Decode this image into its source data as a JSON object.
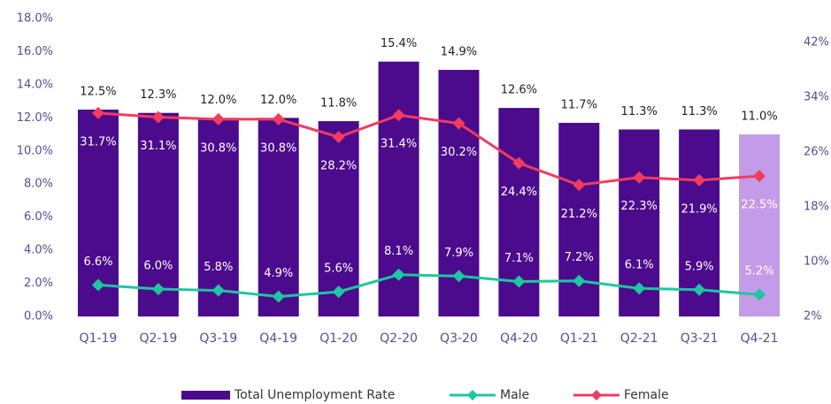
{
  "chart_data": {
    "type": "bar-line",
    "categories": [
      "Q1-19",
      "Q2-19",
      "Q3-19",
      "Q4-19",
      "Q1-20",
      "Q2-20",
      "Q3-20",
      "Q4-20",
      "Q1-21",
      "Q2-21",
      "Q3-21",
      "Q4-21"
    ],
    "series": [
      {
        "name": "Total Unemployment Rate",
        "type": "bar",
        "color": "#4b0b8c",
        "colors": [
          "#4b0b8c",
          "#4b0b8c",
          "#4b0b8c",
          "#4b0b8c",
          "#4b0b8c",
          "#4b0b8c",
          "#4b0b8c",
          "#4b0b8c",
          "#4b0b8c",
          "#4b0b8c",
          "#4b0b8c",
          "#c39be8"
        ],
        "values": [
          12.5,
          12.3,
          12.0,
          12.0,
          11.8,
          15.4,
          14.9,
          12.6,
          11.7,
          11.3,
          11.3,
          11.0
        ],
        "value_labels": [
          "12.5%",
          "12.3%",
          "12.0%",
          "12.0%",
          "11.8%",
          "15.4%",
          "14.9%",
          "12.6%",
          "11.7%",
          "11.3%",
          "11.3%",
          "11.0%"
        ]
      },
      {
        "name": "Male",
        "type": "line",
        "axis": "y2",
        "color": "#1dc7a0",
        "values": [
          6.6,
          6.0,
          5.8,
          4.9,
          5.6,
          8.1,
          7.9,
          7.1,
          7.2,
          6.1,
          5.9,
          5.2
        ],
        "value_labels": [
          "6.6%",
          "6.0%",
          "5.8%",
          "4.9%",
          "5.6%",
          "8.1%",
          "7.9%",
          "7.1%",
          "7.2%",
          "6.1%",
          "5.9%",
          "5.2%"
        ]
      },
      {
        "name": "Female",
        "type": "line",
        "axis": "y2",
        "color": "#f23b5f",
        "values": [
          31.7,
          31.1,
          30.8,
          30.8,
          28.2,
          31.4,
          30.2,
          24.4,
          21.2,
          22.3,
          21.9,
          22.5
        ],
        "value_labels": [
          "31.7%",
          "31.1%",
          "30.8%",
          "30.8%",
          "28.2%",
          "31.4%",
          "30.2%",
          "24.4%",
          "21.2%",
          "22.3%",
          "21.9%",
          "22.5%"
        ]
      }
    ],
    "ylim": [
      0,
      18
    ],
    "yticks": [
      {
        "value": 0,
        "label": "0.0%"
      },
      {
        "value": 2,
        "label": "2.0%"
      },
      {
        "value": 4,
        "label": "4.0%"
      },
      {
        "value": 6,
        "label": "6.0%"
      },
      {
        "value": 8,
        "label": "8.0%"
      },
      {
        "value": 10,
        "label": "10.0%"
      },
      {
        "value": 12,
        "label": "12.0%"
      },
      {
        "value": 14,
        "label": "14.0%"
      },
      {
        "value": 16,
        "label": "16.0%"
      },
      {
        "value": 18,
        "label": "18.0%"
      }
    ],
    "y2lim": [
      2,
      45.5
    ],
    "y2ticks": [
      {
        "value": 2,
        "label": "2%"
      },
      {
        "value": 10,
        "label": "10%"
      },
      {
        "value": 18,
        "label": "18%"
      },
      {
        "value": 26,
        "label": "26%"
      },
      {
        "value": 34,
        "label": "34%"
      },
      {
        "value": 42,
        "label": "42%"
      }
    ],
    "grid": false,
    "legend": "bottom"
  }
}
